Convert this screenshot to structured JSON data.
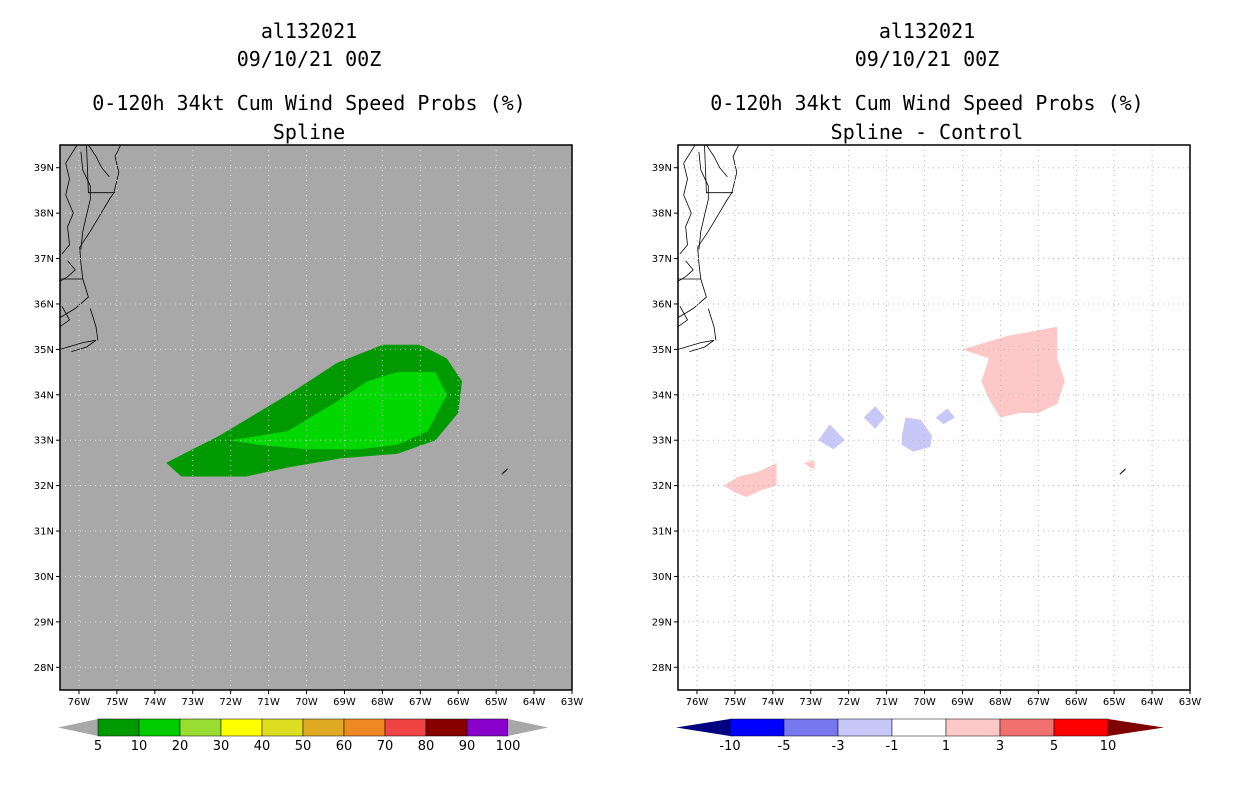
{
  "chart_data": [
    {
      "type": "heatmap",
      "storm_id": "al132021",
      "datetime": "09/10/21 00Z",
      "title": "0-120h 34kt Cum Wind Speed Probs (%)",
      "subtitle": "Spline",
      "xlim": [
        -76.5,
        -63
      ],
      "ylim": [
        27.5,
        39.5
      ],
      "x_ticks": [
        -76,
        -75,
        -74,
        -73,
        -72,
        -71,
        -70,
        -69,
        -68,
        -67,
        -66,
        -65,
        -64,
        -63
      ],
      "x_tick_labels": [
        "76W",
        "75W",
        "74W",
        "73W",
        "72W",
        "71W",
        "70W",
        "69W",
        "68W",
        "67W",
        "66W",
        "65W",
        "64W",
        "63W"
      ],
      "y_ticks": [
        28,
        29,
        30,
        31,
        32,
        33,
        34,
        35,
        36,
        37,
        38,
        39
      ],
      "y_tick_labels": [
        "28N",
        "29N",
        "30N",
        "31N",
        "32N",
        "33N",
        "34N",
        "35N",
        "36N",
        "37N",
        "38N",
        "39N"
      ],
      "background": "#a8a8a8",
      "grid": true,
      "colorbar": {
        "labels": [
          "5",
          "10",
          "20",
          "30",
          "40",
          "50",
          "60",
          "70",
          "80",
          "90",
          "100"
        ],
        "colors": [
          "#009900",
          "#00cc00",
          "#99dd33",
          "#ffff00",
          "#dddd22",
          "#ddaa22",
          "#ee8822",
          "#ee4444",
          "#880000",
          "#8800cc"
        ],
        "end_color": "#a8a8a8"
      },
      "contours": [
        {
          "level": "5-10%",
          "color": "#009a00",
          "polygon": [
            [
              -73.7,
              32.5
            ],
            [
              -73.0,
              32.8
            ],
            [
              -72.3,
              33.1
            ],
            [
              -71.3,
              33.6
            ],
            [
              -70.3,
              34.1
            ],
            [
              -69.2,
              34.7
            ],
            [
              -68.0,
              35.1
            ],
            [
              -67.0,
              35.1
            ],
            [
              -66.3,
              34.8
            ],
            [
              -65.9,
              34.3
            ],
            [
              -66.0,
              33.6
            ],
            [
              -66.6,
              33.0
            ],
            [
              -67.6,
              32.7
            ],
            [
              -69.1,
              32.6
            ],
            [
              -70.5,
              32.4
            ],
            [
              -71.6,
              32.2
            ],
            [
              -72.7,
              32.2
            ],
            [
              -73.3,
              32.2
            ]
          ]
        },
        {
          "level": "10-20%",
          "color": "#00d800",
          "polygon": [
            [
              -72.0,
              33.0
            ],
            [
              -70.5,
              33.2
            ],
            [
              -69.3,
              33.8
            ],
            [
              -68.4,
              34.3
            ],
            [
              -67.6,
              34.5
            ],
            [
              -66.6,
              34.5
            ],
            [
              -66.3,
              34.0
            ],
            [
              -66.8,
              33.2
            ],
            [
              -67.6,
              32.9
            ],
            [
              -68.6,
              32.8
            ],
            [
              -70.0,
              32.8
            ],
            [
              -71.3,
              32.9
            ]
          ]
        }
      ]
    },
    {
      "type": "heatmap",
      "storm_id": "al132021",
      "datetime": "09/10/21 00Z",
      "title": "0-120h 34kt Cum Wind Speed Probs (%)",
      "subtitle": "Spline - Control",
      "xlim": [
        -76.5,
        -63
      ],
      "ylim": [
        27.5,
        39.5
      ],
      "x_ticks": [
        -76,
        -75,
        -74,
        -73,
        -72,
        -71,
        -70,
        -69,
        -68,
        -67,
        -66,
        -65,
        -64,
        -63
      ],
      "x_tick_labels": [
        "76W",
        "75W",
        "74W",
        "73W",
        "72W",
        "71W",
        "70W",
        "69W",
        "68W",
        "67W",
        "66W",
        "65W",
        "64W",
        "63W"
      ],
      "y_ticks": [
        28,
        29,
        30,
        31,
        32,
        33,
        34,
        35,
        36,
        37,
        38,
        39
      ],
      "y_tick_labels": [
        "28N",
        "29N",
        "30N",
        "31N",
        "32N",
        "33N",
        "34N",
        "35N",
        "36N",
        "37N",
        "38N",
        "39N"
      ],
      "background": "#ffffff",
      "grid": true,
      "colorbar": {
        "labels": [
          "-10",
          "-5",
          "-3",
          "-1",
          "1",
          "3",
          "5",
          "10"
        ],
        "colors": [
          "#0000ff",
          "#7777ee",
          "#c8c8f8",
          "#ffffff",
          "#fcc8c8",
          "#f07070",
          "#ff0000"
        ],
        "end_left": "#000080",
        "end_right": "#800000"
      },
      "contours": [
        {
          "level": "1-3%",
          "color": "#ffc8c8",
          "polygon": [
            [
              -69.0,
              35.0
            ],
            [
              -67.8,
              35.3
            ],
            [
              -66.5,
              35.5
            ],
            [
              -66.5,
              34.8
            ],
            [
              -66.3,
              34.3
            ],
            [
              -66.5,
              33.8
            ],
            [
              -67.0,
              33.6
            ],
            [
              -67.5,
              33.6
            ],
            [
              -68.0,
              33.5
            ],
            [
              -68.3,
              33.9
            ],
            [
              -68.5,
              34.3
            ],
            [
              -68.3,
              34.8
            ]
          ]
        },
        {
          "level": "1-3%",
          "color": "#ffc8c8",
          "polygon": [
            [
              -75.3,
              32.0
            ],
            [
              -74.9,
              32.2
            ],
            [
              -74.4,
              32.3
            ],
            [
              -73.9,
              32.5
            ],
            [
              -73.9,
              32.0
            ],
            [
              -74.3,
              31.9
            ],
            [
              -74.7,
              31.75
            ],
            [
              -75.0,
              31.85
            ]
          ]
        },
        {
          "level": "1-3%",
          "color": "#ffc8c8",
          "polygon": [
            [
              -73.2,
              32.5
            ],
            [
              -72.9,
              32.55
            ],
            [
              -72.9,
              32.35
            ]
          ]
        },
        {
          "level": "-1 to -3%",
          "color": "#c8c8f8",
          "polygon": [
            [
              -72.8,
              33.0
            ],
            [
              -72.5,
              33.35
            ],
            [
              -72.1,
              33.0
            ],
            [
              -72.4,
              32.8
            ]
          ]
        },
        {
          "level": "-1 to -3%",
          "color": "#c8c8f8",
          "polygon": [
            [
              -71.6,
              33.5
            ],
            [
              -71.3,
              33.75
            ],
            [
              -71.05,
              33.5
            ],
            [
              -71.3,
              33.25
            ]
          ]
        },
        {
          "level": "-1 to -3%",
          "color": "#c8c8f8",
          "polygon": [
            [
              -70.6,
              33.1
            ],
            [
              -70.5,
              33.5
            ],
            [
              -70.1,
              33.45
            ],
            [
              -69.8,
              33.1
            ],
            [
              -69.85,
              32.85
            ],
            [
              -70.3,
              32.75
            ],
            [
              -70.6,
              32.9
            ]
          ]
        },
        {
          "level": "-1 to -3%",
          "color": "#c8c8f8",
          "polygon": [
            [
              -69.7,
              33.5
            ],
            [
              -69.4,
              33.7
            ],
            [
              -69.2,
              33.5
            ],
            [
              -69.5,
              33.35
            ]
          ]
        }
      ]
    }
  ]
}
